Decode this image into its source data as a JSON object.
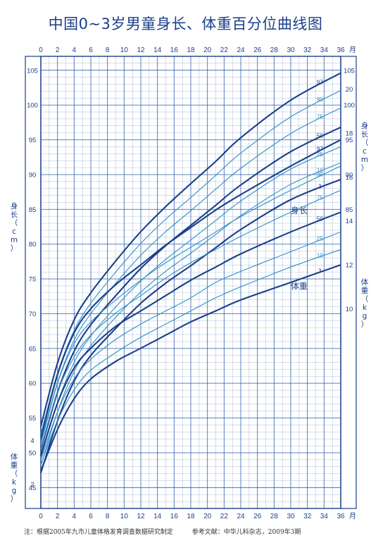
{
  "title": "中国0~3岁男童身长、体重百分位曲线图",
  "footnote": {
    "left": "注：根据2005年九市儿童体格发育调查数据研究制定",
    "right": "参考文献：中华儿科杂志，2009年3期"
  },
  "colors": {
    "frame": "#1b3f8a",
    "grid": "#2a5ba8",
    "bold_curve": "#1b3f8a",
    "thin_curve": "#2f8fc4",
    "text": "#1b3f8a"
  },
  "chart_data": {
    "type": "line",
    "title": "中国0~3岁男童身长、体重百分位曲线图",
    "x_ticks": [
      "0",
      "2",
      "4",
      "6",
      "8",
      "10",
      "12",
      "14",
      "16",
      "18",
      "20",
      "22",
      "24",
      "26",
      "28",
      "30",
      "32",
      "34",
      "36"
    ],
    "x_unit": "月",
    "xlim": [
      0,
      36
    ],
    "grid": true,
    "length": {
      "label": "身长",
      "axis_label_left": "身长（cm）",
      "axis_label_right": "身长（cm）",
      "unit": "cm",
      "ylim": [
        42,
        107
      ],
      "y_ticks_left": [
        "45",
        "50",
        "55",
        "60",
        "65",
        "70",
        "75",
        "80",
        "85",
        "90",
        "95",
        "100",
        "105"
      ],
      "y_ticks_right": [
        "85",
        "90",
        "95",
        "100",
        "105"
      ],
      "x": [
        0,
        2,
        4,
        6,
        9,
        12,
        15,
        18,
        21,
        24,
        30,
        36
      ],
      "series": [
        {
          "name": "3",
          "values": [
            47.1,
            54.6,
            60.3,
            64.0,
            67.9,
            71.5,
            74.4,
            76.9,
            79.5,
            82.1,
            86.4,
            89.3
          ],
          "bold": true
        },
        {
          "name": "10",
          "values": [
            48.1,
            55.9,
            61.7,
            65.4,
            69.5,
            73.1,
            76.1,
            78.7,
            81.4,
            84.1,
            88.6,
            91.7
          ],
          "bold": false
        },
        {
          "name": "25",
          "values": [
            49.2,
            57.2,
            63.0,
            66.8,
            71.0,
            74.7,
            77.8,
            80.6,
            83.4,
            86.2,
            90.8,
            94.0
          ],
          "bold": false
        },
        {
          "name": "50",
          "values": [
            50.4,
            58.7,
            64.6,
            68.4,
            72.6,
            76.5,
            79.8,
            82.7,
            85.6,
            88.5,
            93.3,
            96.8
          ],
          "bold": true
        },
        {
          "name": "75",
          "values": [
            51.6,
            60.1,
            66.2,
            70.0,
            74.4,
            78.4,
            81.8,
            84.8,
            87.9,
            90.9,
            95.9,
            99.6
          ],
          "bold": false
        },
        {
          "name": "90",
          "values": [
            52.7,
            61.5,
            67.6,
            71.5,
            76.0,
            80.1,
            83.6,
            86.7,
            89.9,
            93.1,
            98.3,
            102.1
          ],
          "bold": false
        },
        {
          "name": "97",
          "values": [
            53.8,
            62.9,
            69.1,
            73.0,
            77.6,
            81.8,
            85.4,
            88.7,
            91.9,
            95.3,
            100.7,
            104.6
          ],
          "bold": true
        }
      ]
    },
    "weight": {
      "label": "体重",
      "axis_label_left": "体重（kg）",
      "axis_label_right": "体重（kg）",
      "unit": "kg",
      "ylim": [
        0.9,
        21.5
      ],
      "y_ticks_left": [
        "2",
        "4"
      ],
      "y_ticks_right": [
        "10",
        "12",
        "14",
        "16",
        "18",
        "20"
      ],
      "x": [
        0,
        2,
        4,
        6,
        9,
        12,
        15,
        18,
        21,
        24,
        30,
        36
      ],
      "series": [
        {
          "name": "3",
          "values": [
            2.6,
            4.5,
            5.9,
            6.8,
            7.6,
            8.2,
            8.8,
            9.4,
            9.9,
            10.4,
            11.2,
            12.0
          ],
          "bold": true
        },
        {
          "name": "10",
          "values": [
            2.9,
            4.9,
            6.3,
            7.2,
            8.0,
            8.7,
            9.3,
            9.9,
            10.5,
            11.0,
            11.9,
            12.7
          ],
          "bold": false
        },
        {
          "name": "25",
          "values": [
            3.1,
            5.3,
            6.8,
            7.7,
            8.6,
            9.3,
            9.9,
            10.5,
            11.2,
            11.7,
            12.6,
            13.5
          ],
          "bold": false
        },
        {
          "name": "50",
          "values": [
            3.3,
            5.7,
            7.3,
            8.2,
            9.2,
            9.9,
            10.6,
            11.3,
            11.9,
            12.5,
            13.5,
            14.4
          ],
          "bold": true
        },
        {
          "name": "75",
          "values": [
            3.6,
            6.2,
            7.8,
            8.8,
            9.8,
            10.6,
            11.4,
            12.1,
            12.7,
            13.3,
            14.4,
            15.4
          ],
          "bold": false
        },
        {
          "name": "90",
          "values": [
            3.8,
            6.6,
            8.4,
            9.4,
            10.4,
            11.3,
            12.1,
            12.8,
            13.5,
            14.2,
            15.4,
            16.5
          ],
          "bold": false
        },
        {
          "name": "97",
          "values": [
            4.1,
            7.0,
            8.9,
            10.0,
            11.1,
            12.0,
            12.9,
            13.7,
            14.5,
            15.2,
            16.5,
            17.7
          ],
          "bold": true
        }
      ]
    }
  }
}
